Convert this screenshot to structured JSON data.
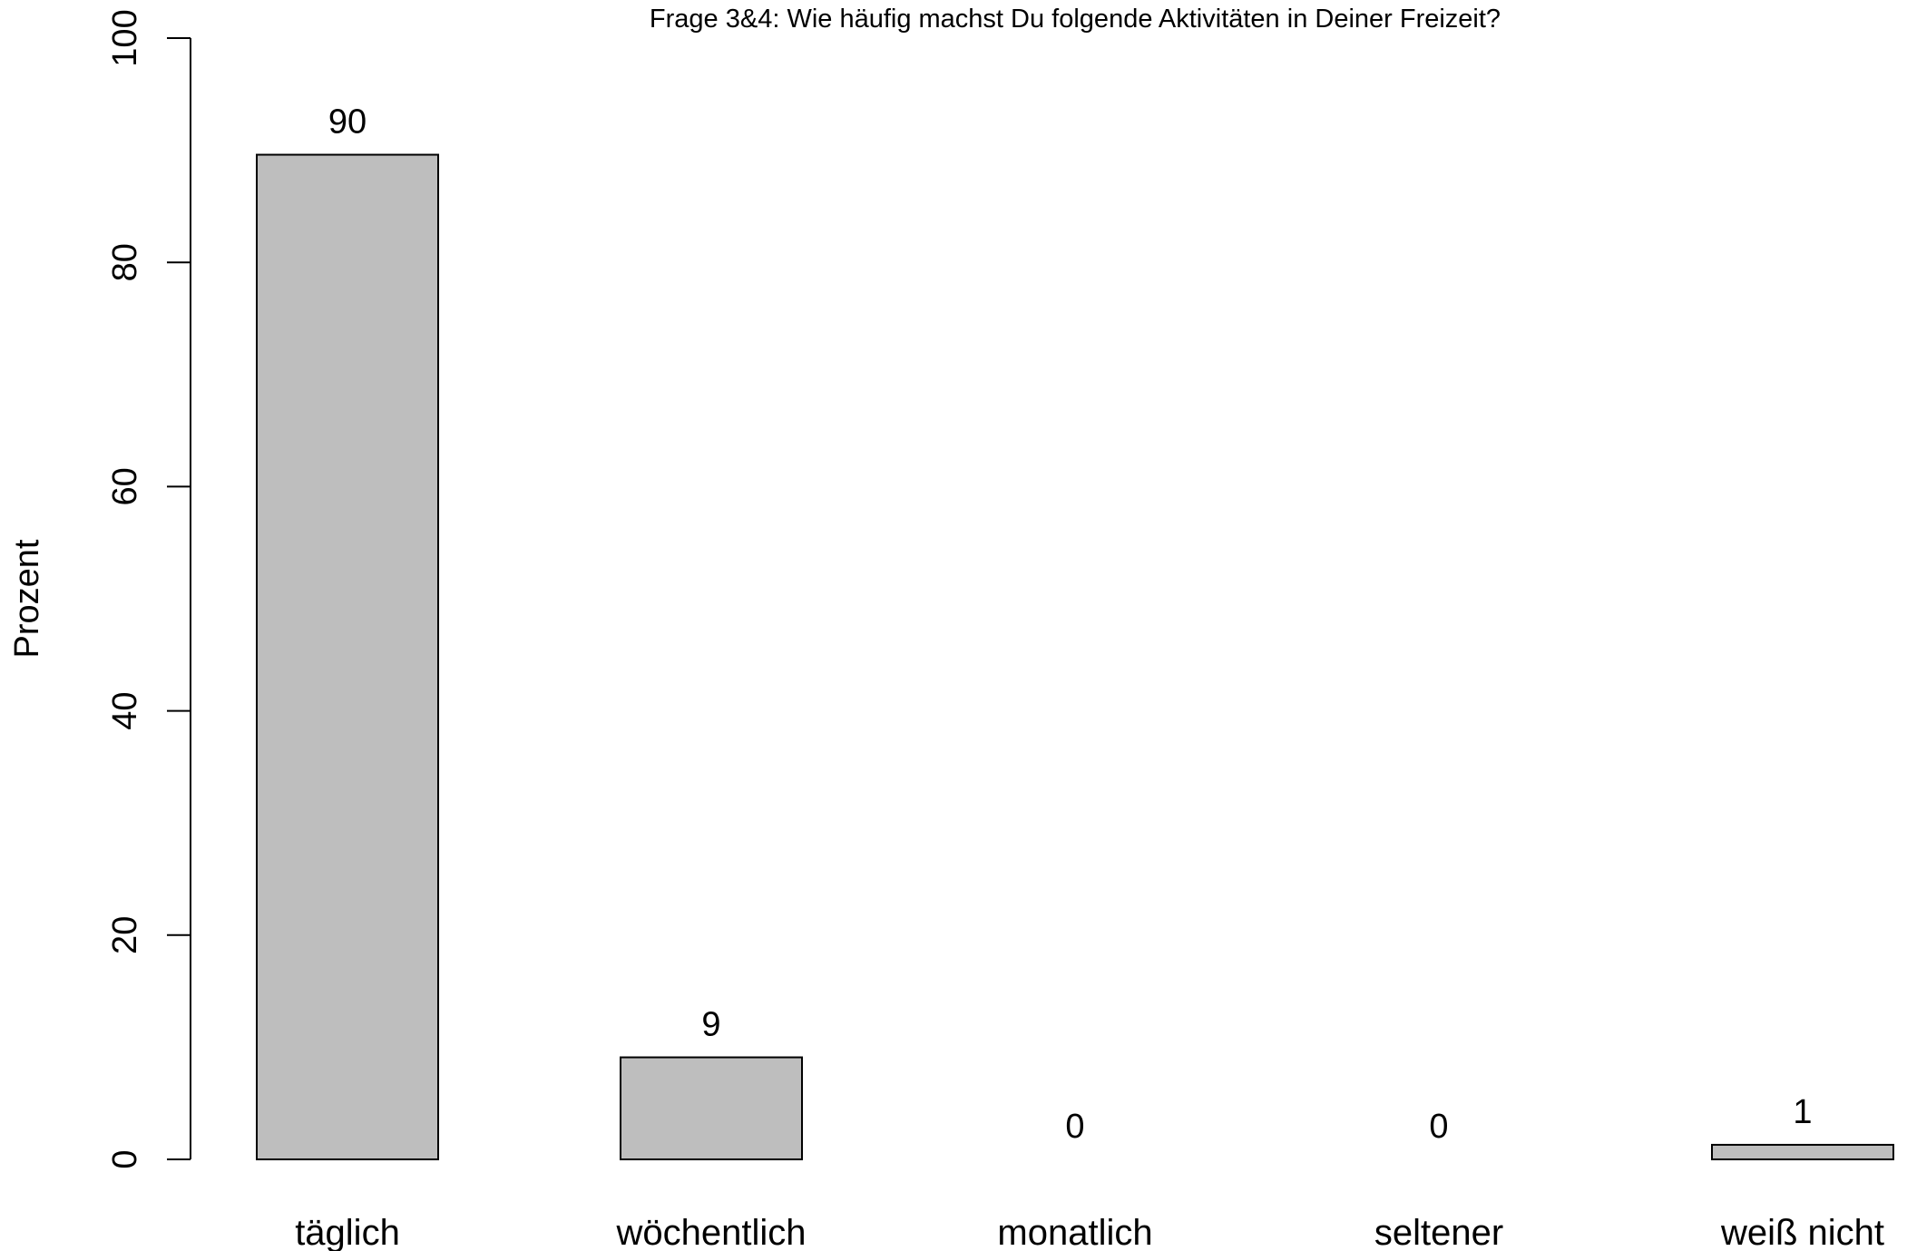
{
  "chart_data": {
    "type": "bar",
    "title": "Frage 3&4: Wie häufig machst Du folgende Aktivitäten in Deiner Freizeit?",
    "xlabel": "",
    "ylabel": "Prozent",
    "ylim": [
      0,
      100
    ],
    "yticks": [
      0,
      20,
      40,
      60,
      80,
      100
    ],
    "categories": [
      "täglich",
      "wöchentlich",
      "monatlich",
      "seltener",
      "weiß nicht"
    ],
    "values": [
      89.6,
      9.1,
      0,
      0,
      1.3
    ],
    "data_labels": [
      "90",
      "9",
      "0",
      "0",
      "1"
    ],
    "bar_fill": "#bebebe",
    "bar_stroke": "#000000",
    "grid": false,
    "legend": "none"
  }
}
